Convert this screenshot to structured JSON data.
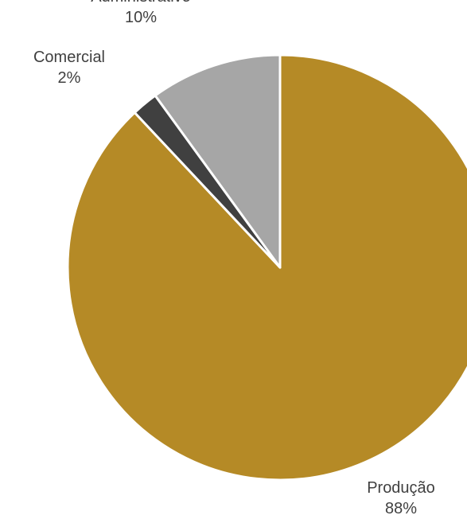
{
  "chart_data": {
    "type": "pie",
    "title": "",
    "slices": [
      {
        "label": "Produção",
        "value": 88,
        "display": "88%",
        "color": "#b58a26"
      },
      {
        "label": "Comercial",
        "value": 2,
        "display": "2%",
        "color": "#404040"
      },
      {
        "label": "Administrativo",
        "value": 10,
        "display": "10%",
        "color": "#a6a6a6"
      }
    ],
    "start_angle_deg": 0,
    "direction": "clockwise",
    "legend": "none",
    "label_color": "#404040"
  }
}
